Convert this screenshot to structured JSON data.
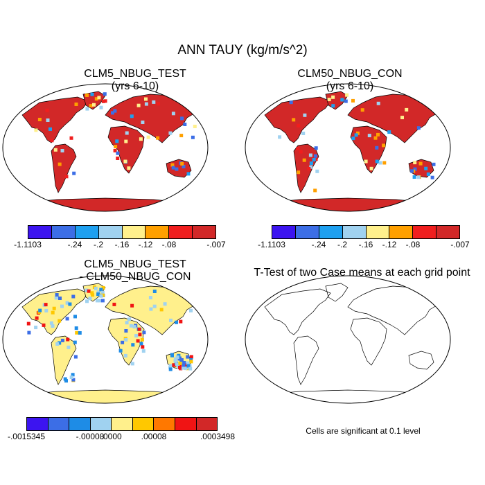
{
  "main_title": "ANN TAUY (kg/m/s^2)",
  "panels": {
    "p1": {
      "line1": "CLM5_NBUG_TEST",
      "line2": "(yrs 6-10)"
    },
    "p2": {
      "line1": "CLM50_NBUG_CON",
      "line2": "(yrs 6-10)"
    },
    "p3": {
      "line1": "CLM5_NBUG_TEST",
      "line2": "- CLM50_NBUG_CON"
    },
    "p4": {
      "line1": "T-Test of two Case means at each grid point"
    }
  },
  "colorbar_top": {
    "colors": [
      "#3c14f0",
      "#3c6ee6",
      "#1ea0f0",
      "#a0d2f0",
      "#fff08c",
      "#ffa000",
      "#f01e1e",
      "#d22828"
    ],
    "labels": [
      "-1.1103",
      "-.24",
      "-.2",
      "-.16",
      "-.12",
      "-.08",
      "-.007"
    ]
  },
  "colorbar_diff": {
    "colors": [
      "#3c14f0",
      "#3c6ee6",
      "#1e8ce6",
      "#a0d2f0",
      "#fff08c",
      "#ffc800",
      "#ff7800",
      "#f01414",
      "#d22828"
    ],
    "labels": [
      "-.0015345",
      "-.00008",
      ".0000",
      ".00008",
      ".0003498"
    ]
  },
  "significance_note": "Cells are significant at 0.1 level"
}
